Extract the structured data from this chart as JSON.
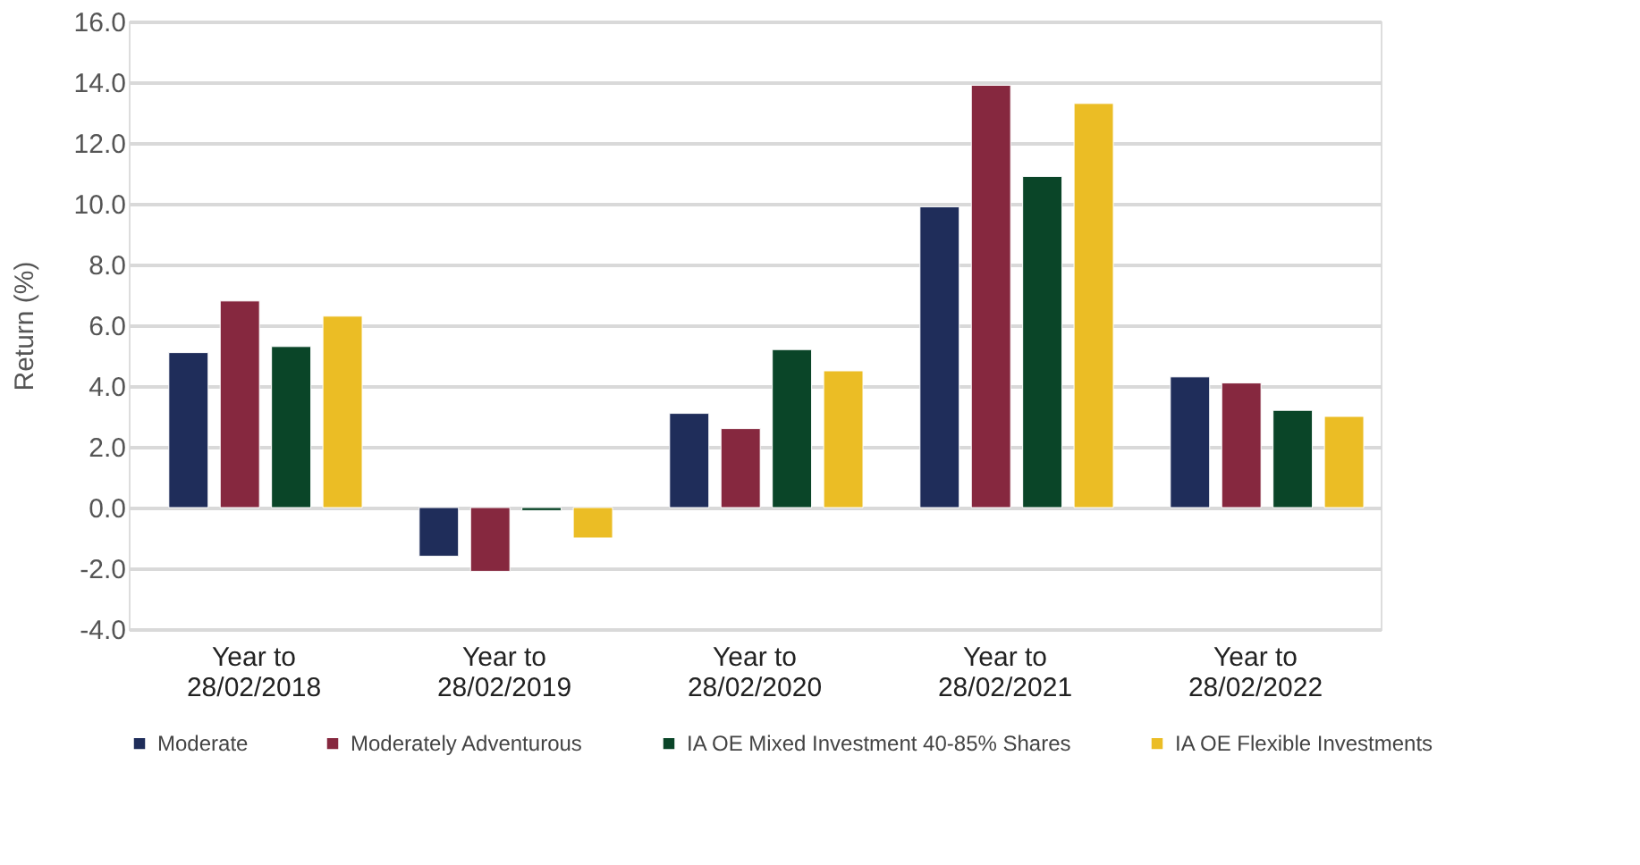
{
  "chart_data": {
    "type": "bar",
    "ylabel": "Return (%)",
    "categories": [
      "Year to 28/02/2018",
      "Year to 28/02/2019",
      "Year to 28/02/2020",
      "Year to 28/02/2021",
      "Year to 28/02/2022"
    ],
    "series": [
      {
        "name": "Moderate",
        "color": "#1f2d5a",
        "values": [
          5.1,
          -1.6,
          3.1,
          9.9,
          4.3
        ]
      },
      {
        "name": "Moderately Adventurous",
        "color": "#86283f",
        "values": [
          6.8,
          -2.1,
          2.6,
          13.9,
          4.1
        ]
      },
      {
        "name": "IA OE Mixed Investment 40-85% Shares",
        "color": "#0a4528",
        "values": [
          5.3,
          -0.1,
          5.2,
          10.9,
          3.2
        ]
      },
      {
        "name": "IA OE Flexible Investments",
        "color": "#ebbd25",
        "values": [
          6.3,
          -1.0,
          4.5,
          13.3,
          3.0
        ]
      }
    ],
    "ylim": [
      -4,
      16
    ],
    "yticks": [
      {
        "value": -4,
        "label": "-4.0"
      },
      {
        "value": -2,
        "label": "-2.0"
      },
      {
        "value": 0,
        "label": "0.0"
      },
      {
        "value": 2,
        "label": "2.0"
      },
      {
        "value": 4,
        "label": "4.0"
      },
      {
        "value": 6,
        "label": "6.0"
      },
      {
        "value": 8,
        "label": "8.0"
      },
      {
        "value": 10,
        "label": "10.0"
      },
      {
        "value": 12,
        "label": "12.0"
      },
      {
        "value": 14,
        "label": "14.0"
      },
      {
        "value": 16,
        "label": "16.0"
      }
    ],
    "grid": "y",
    "legend": "bottom"
  }
}
